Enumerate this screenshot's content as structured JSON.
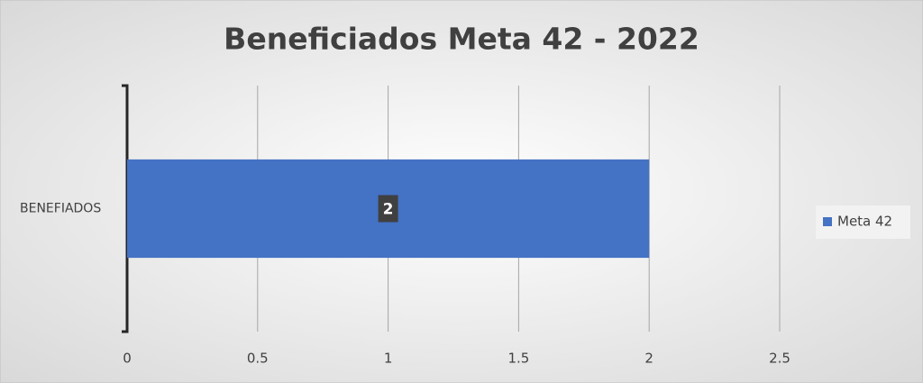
{
  "chart_data": {
    "type": "bar",
    "orientation": "horizontal",
    "title": "Beneficiados Meta 42 - 2022",
    "categories": [
      "BENEFIADOS"
    ],
    "series": [
      {
        "name": "Meta 42",
        "color": "#4472c4",
        "values": [
          2
        ]
      }
    ],
    "xlim": [
      0,
      2.5
    ],
    "xticks": [
      0,
      0.5,
      1,
      1.5,
      2,
      2.5
    ],
    "grid": true,
    "legend": "right",
    "data_labels": true
  }
}
